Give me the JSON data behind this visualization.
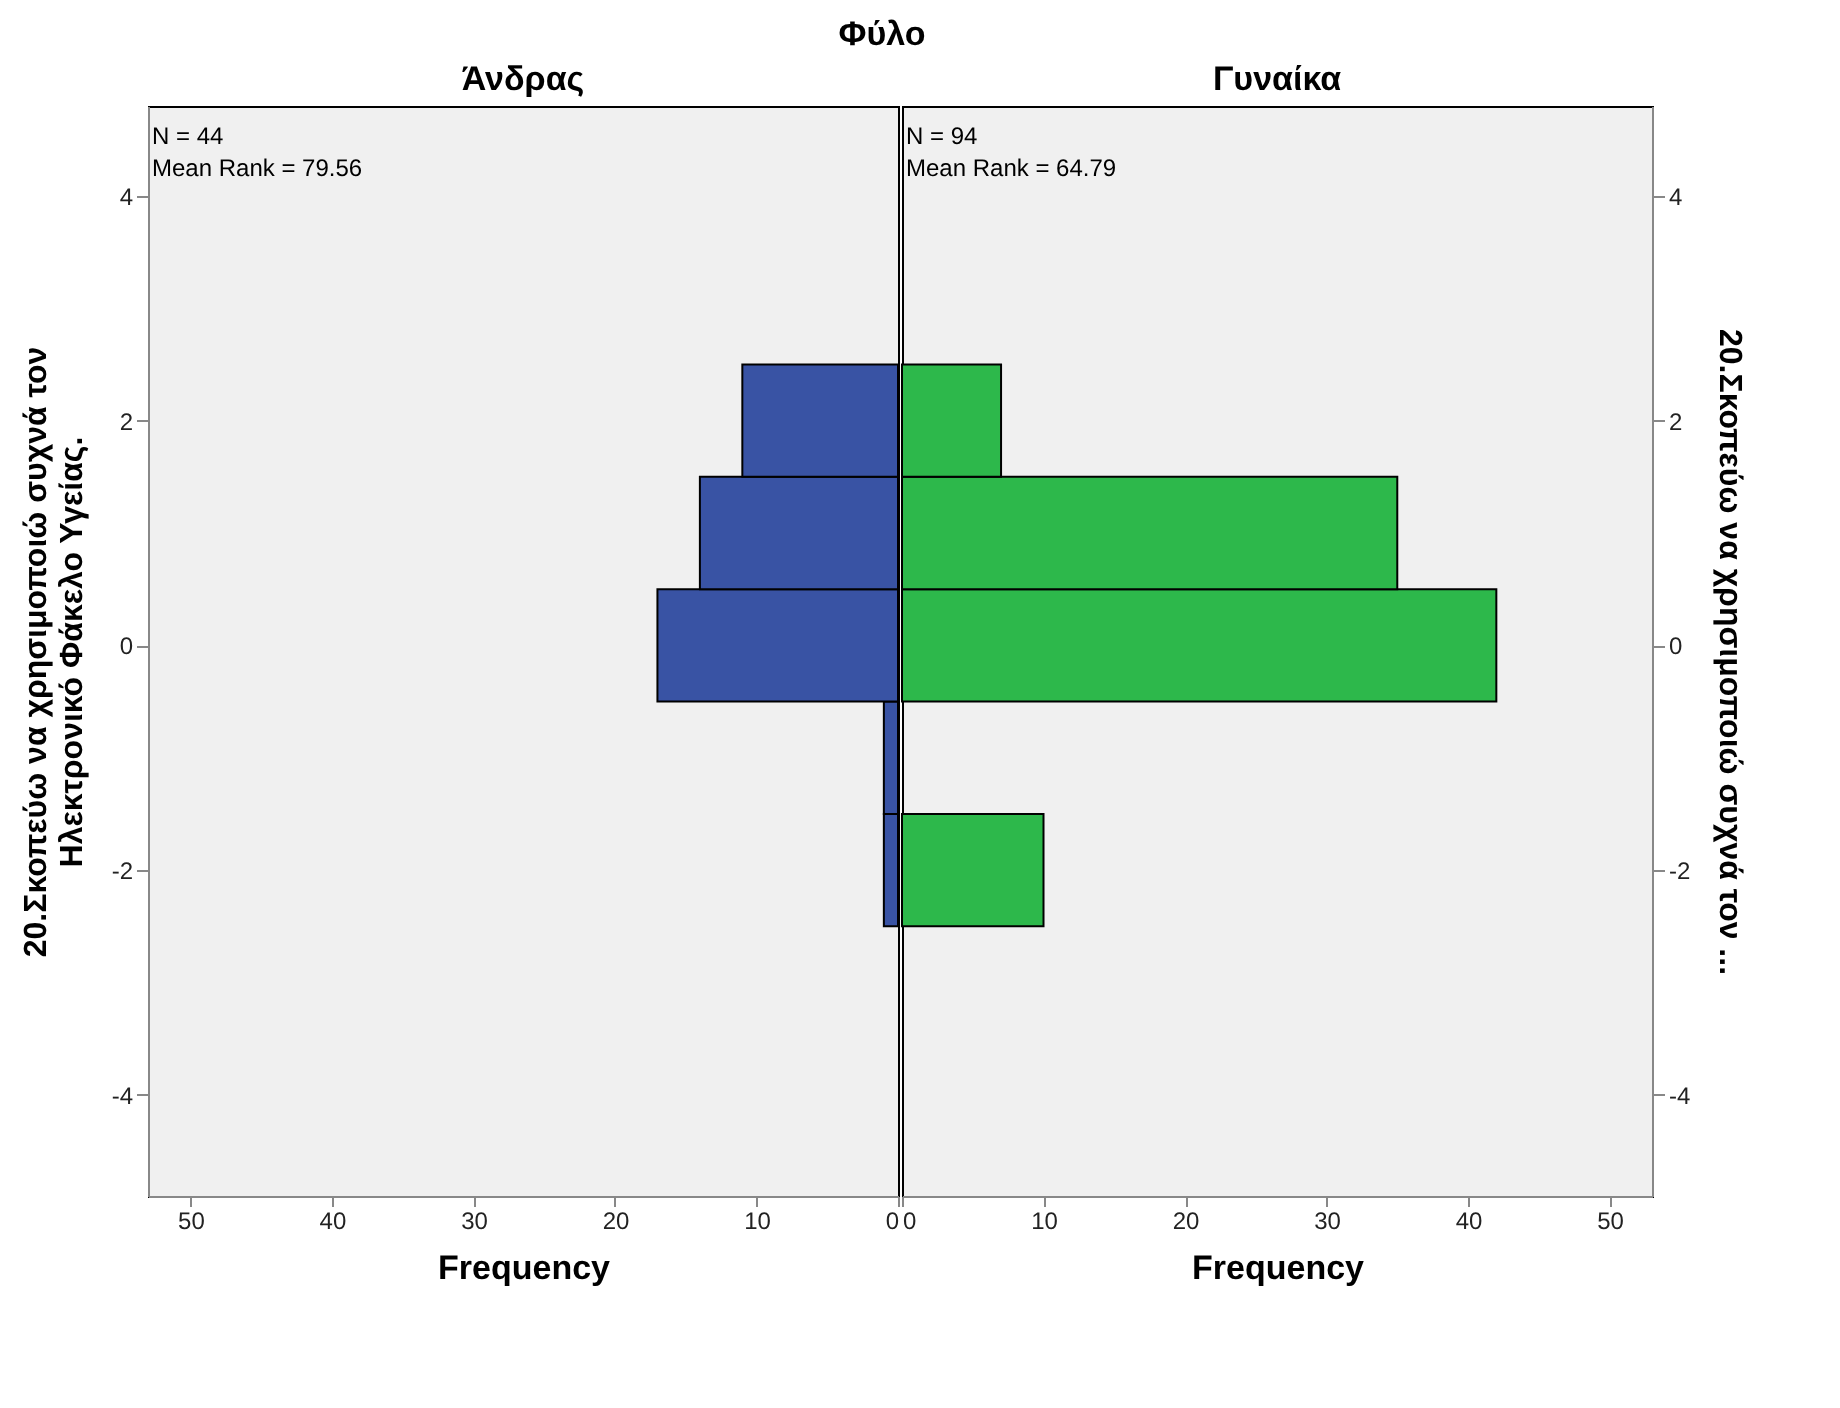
{
  "chart_data": [
    {
      "type": "histogram",
      "subtitle": "Φύλο",
      "title": "Άνδρας",
      "orientation": "horizontal",
      "bins": [
        -2.5,
        -1.5,
        -0.5,
        0.5,
        1.5,
        2.5
      ],
      "values": [
        1,
        1,
        17,
        14,
        11
      ],
      "color": "#3953a4",
      "xlim": [
        53,
        0
      ],
      "xticks": [
        50,
        40,
        30,
        20,
        10,
        0
      ],
      "ylim": [
        -4.9,
        4.8
      ],
      "yticks": [
        -4,
        -2,
        0,
        2,
        4
      ],
      "xlabel": "Frequency",
      "ylabel": "20.Σκοπεύω να χρησιμοποιώ συχνά τον Ηλεκτρονικό Φάκελο Υγείας.",
      "annotations": [
        "N = 44",
        "Mean Rank = 79.56"
      ]
    },
    {
      "type": "histogram",
      "title": "Γυναίκα",
      "orientation": "horizontal",
      "bins": [
        -2.5,
        -1.5,
        -0.5,
        0.5,
        1.5,
        2.5
      ],
      "values": [
        10,
        0,
        42,
        35,
        7
      ],
      "color": "#2db84b",
      "xlim": [
        0,
        53
      ],
      "xticks": [
        0,
        10,
        20,
        30,
        40,
        50
      ],
      "ylim": [
        -4.9,
        4.8
      ],
      "yticks": [
        -4,
        -2,
        0,
        2,
        4
      ],
      "xlabel": "Frequency",
      "ylabel": "20.Σκοπεύω να χρησιμοποιώ συχνά τον ...",
      "annotations": [
        "N = 94",
        "Mean Rank = 64.79"
      ]
    }
  ]
}
